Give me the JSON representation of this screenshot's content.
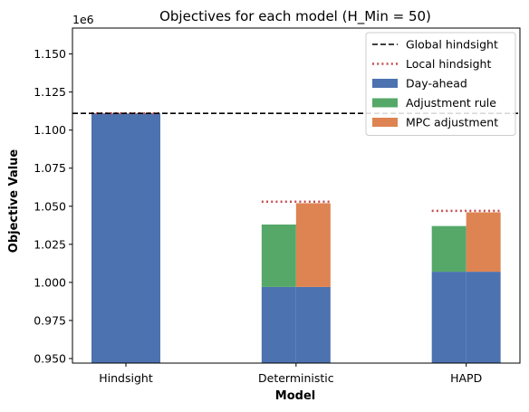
{
  "chart_data": {
    "type": "bar",
    "title": "Objectives for each model (H_Min = 50)",
    "xlabel": "Model",
    "ylabel": "Objective Value",
    "offset_text": "1e6",
    "categories": [
      "Hindsight",
      "Deterministic",
      "HAPD"
    ],
    "ylim": [
      0.947,
      1.167
    ],
    "yticks": [
      0.95,
      0.975,
      1.0,
      1.025,
      1.05,
      1.075,
      1.1,
      1.125,
      1.15
    ],
    "ytick_labels": [
      "0.950",
      "0.975",
      "1.000",
      "1.025",
      "1.050",
      "1.075",
      "1.100",
      "1.125",
      "1.150"
    ],
    "series": [
      {
        "name": "Day-ahead",
        "color": "#4c72b0",
        "values": [
          1.111,
          0.997,
          1.007
        ]
      },
      {
        "name": "Adjustment rule",
        "color": "#55a868",
        "values": [
          null,
          1.038,
          1.037
        ]
      },
      {
        "name": "MPC adjustment",
        "color": "#dd8452",
        "values": [
          null,
          1.052,
          1.046
        ]
      }
    ],
    "global_hindsight": {
      "name": "Global hindsight",
      "value": 1.111,
      "color": "#000000",
      "style": "dashed"
    },
    "local_hindsight": {
      "name": "Local hindsight",
      "values": [
        1.111,
        1.053,
        1.047
      ],
      "color": "#c44e52",
      "style": "dotted"
    },
    "legend": {
      "position": "top-right",
      "entries": [
        {
          "label": "Global hindsight",
          "kind": "dashed-line",
          "color": "#000000"
        },
        {
          "label": "Local hindsight",
          "kind": "dotted-line",
          "color": "#c44e52"
        },
        {
          "label": "Day-ahead",
          "kind": "patch",
          "color": "#4c72b0"
        },
        {
          "label": "Adjustment rule",
          "kind": "patch",
          "color": "#55a868"
        },
        {
          "label": "MPC adjustment",
          "kind": "patch",
          "color": "#dd8452"
        }
      ]
    },
    "grid": false
  }
}
